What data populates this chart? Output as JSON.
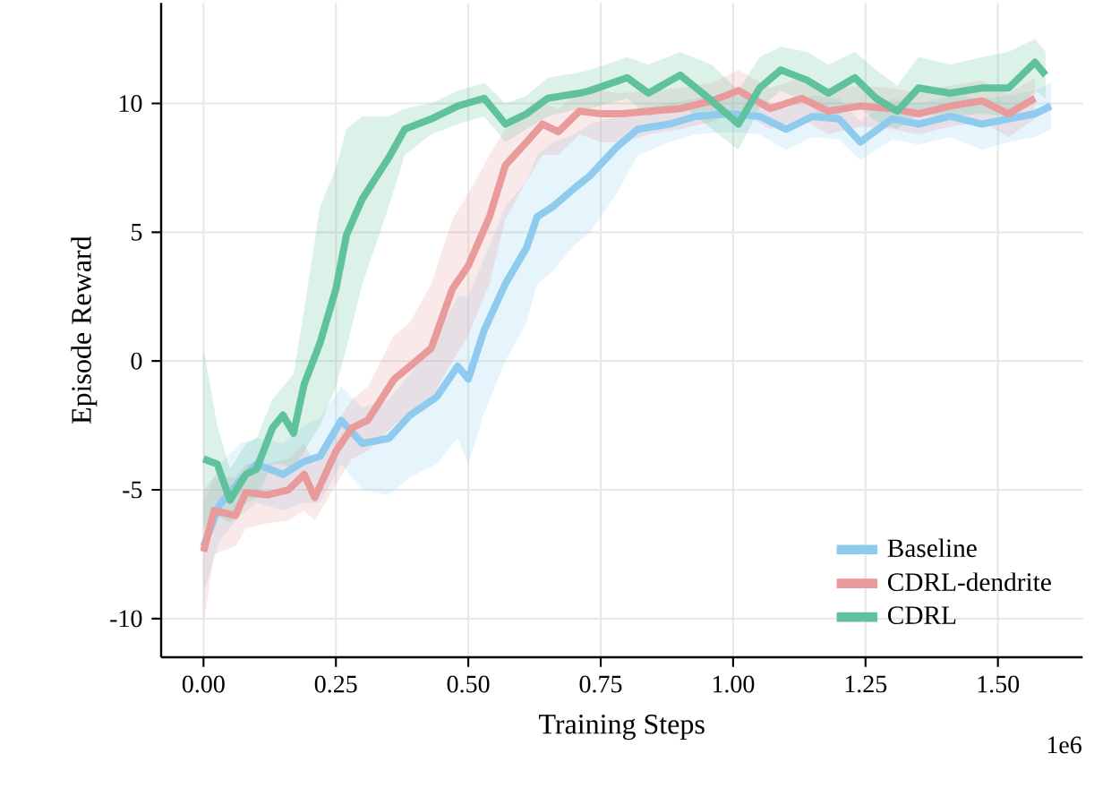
{
  "chart_data": {
    "type": "line",
    "xlabel": "Training Steps",
    "ylabel": "Episode Reward",
    "annotations": [
      "1e6"
    ],
    "xlim": [
      -0.08,
      1.66
    ],
    "ylim": [
      -11.5,
      13.9
    ],
    "xticks": [
      {
        "value": 0,
        "label": "0.00"
      },
      {
        "value": 0.25,
        "label": "0.25"
      },
      {
        "value": 0.5,
        "label": "0.50"
      },
      {
        "value": 0.75,
        "label": "0.75"
      },
      {
        "value": 1.0,
        "label": "1.00"
      },
      {
        "value": 1.25,
        "label": "1.25"
      },
      {
        "value": 1.5,
        "label": "1.50"
      }
    ],
    "yticks": [
      -10,
      -5,
      0,
      5,
      10
    ],
    "grid": true,
    "legend": "bottom right",
    "marker": "none",
    "line_style": "solid",
    "series": [
      {
        "name": "Baseline",
        "color": "#8ecbee",
        "x": [
          0,
          0.03,
          0.07,
          0.1,
          0.15,
          0.19,
          0.22,
          0.26,
          0.3,
          0.35,
          0.39,
          0.44,
          0.48,
          0.5,
          0.53,
          0.57,
          0.61,
          0.63,
          0.66,
          0.7,
          0.73,
          0.78,
          0.82,
          0.88,
          0.93,
          0.99,
          1.05,
          1.1,
          1.15,
          1.2,
          1.24,
          1.3,
          1.35,
          1.41,
          1.47,
          1.52,
          1.57,
          1.6
        ],
        "values": [
          -7.2,
          -5.6,
          -4.6,
          -4.0,
          -4.4,
          -3.9,
          -3.7,
          -2.3,
          -3.2,
          -3.0,
          -2.1,
          -1.4,
          -0.2,
          -0.7,
          1.2,
          3.0,
          4.4,
          5.6,
          6.0,
          6.7,
          7.2,
          8.3,
          9.0,
          9.2,
          9.5,
          9.6,
          9.5,
          9.0,
          9.5,
          9.4,
          8.5,
          9.4,
          9.2,
          9.5,
          9.2,
          9.4,
          9.6,
          9.9
        ],
        "lower": [
          -9,
          -7,
          -6,
          -5.5,
          -5.8,
          -5.5,
          -5.5,
          -4,
          -5,
          -5.2,
          -4.5,
          -4,
          -3,
          -4,
          -2,
          0,
          1.5,
          3,
          3.5,
          4.5,
          5,
          6.5,
          8,
          8.5,
          8.8,
          8.9,
          8.8,
          8.2,
          8.7,
          8.6,
          7.8,
          8.6,
          8.4,
          8.7,
          8.2,
          8.5,
          8.7,
          9
        ],
        "upper": [
          -5.5,
          -4,
          -3.2,
          -3,
          -3.2,
          -2.5,
          -2.2,
          -1,
          -1.8,
          -1.5,
          -0.5,
          1,
          2.5,
          2.5,
          4,
          6,
          7,
          8,
          8.5,
          8.8,
          9.2,
          9.5,
          9.8,
          10,
          10.2,
          10.3,
          10.2,
          9.8,
          10.3,
          10.2,
          9.3,
          10.2,
          10,
          10.3,
          10.2,
          10.3,
          10.5,
          10.8
        ]
      },
      {
        "name": "CDRL-dendrite",
        "color": "#e99a9a",
        "x": [
          0,
          0.02,
          0.06,
          0.08,
          0.12,
          0.16,
          0.19,
          0.21,
          0.25,
          0.28,
          0.31,
          0.36,
          0.39,
          0.43,
          0.47,
          0.5,
          0.54,
          0.57,
          0.61,
          0.64,
          0.67,
          0.71,
          0.75,
          0.79,
          0.84,
          0.9,
          0.96,
          1.01,
          1.07,
          1.13,
          1.18,
          1.24,
          1.3,
          1.35,
          1.41,
          1.47,
          1.52,
          1.57
        ],
        "values": [
          -7.4,
          -5.8,
          -6.0,
          -5.1,
          -5.2,
          -5.0,
          -4.4,
          -5.3,
          -3.5,
          -2.6,
          -2.3,
          -0.7,
          -0.2,
          0.5,
          2.8,
          3.7,
          5.6,
          7.6,
          8.5,
          9.2,
          8.9,
          9.7,
          9.6,
          9.6,
          9.7,
          9.8,
          10.1,
          10.5,
          9.8,
          10.2,
          9.7,
          9.9,
          9.8,
          9.6,
          9.9,
          10.1,
          9.6,
          10.2
        ],
        "lower": [
          -10.2,
          -7.5,
          -7.2,
          -6.5,
          -6.3,
          -6.2,
          -5.8,
          -6.2,
          -4.8,
          -3.8,
          -3.5,
          -2.5,
          -2,
          -1.5,
          0,
          1,
          3,
          5.5,
          7,
          8,
          8,
          8.8,
          8.5,
          8.5,
          8.8,
          9,
          9.3,
          9.7,
          9,
          9.4,
          8.8,
          9.1,
          9,
          8.8,
          9.1,
          9.3,
          8.7,
          9.4
        ],
        "upper": [
          -5,
          -4.5,
          -4.5,
          -4,
          -4,
          -3.8,
          -3.2,
          -4,
          -2.5,
          -1.5,
          -1,
          1,
          1.5,
          3,
          5.5,
          6.5,
          8,
          9,
          9.5,
          10,
          9.8,
          10.5,
          10.5,
          10.4,
          10.5,
          10.6,
          10.8,
          11.3,
          10.6,
          11,
          10.5,
          10.7,
          10.6,
          10.4,
          10.7,
          10.9,
          10.4,
          11
        ]
      },
      {
        "name": "CDRL",
        "color": "#5fc29c",
        "x": [
          0,
          0.026,
          0.05,
          0.08,
          0.1,
          0.13,
          0.15,
          0.17,
          0.19,
          0.22,
          0.25,
          0.27,
          0.3,
          0.35,
          0.38,
          0.43,
          0.48,
          0.53,
          0.57,
          0.61,
          0.65,
          0.71,
          0.73,
          0.8,
          0.84,
          0.9,
          0.96,
          1.01,
          1.05,
          1.09,
          1.14,
          1.18,
          1.23,
          1.27,
          1.31,
          1.35,
          1.41,
          1.47,
          1.52,
          1.57,
          1.59
        ],
        "values": [
          -3.8,
          -4.0,
          -5.4,
          -4.4,
          -4.2,
          -2.6,
          -2.1,
          -2.8,
          -0.9,
          0.7,
          2.8,
          4.9,
          6.3,
          7.9,
          9.0,
          9.4,
          9.9,
          10.2,
          9.2,
          9.6,
          10.2,
          10.4,
          10.5,
          11.0,
          10.4,
          11.1,
          10.1,
          9.2,
          10.6,
          11.3,
          10.9,
          10.4,
          11.0,
          10.2,
          9.7,
          10.6,
          10.4,
          10.6,
          10.6,
          11.6,
          11.1
        ],
        "lower": [
          -6.5,
          -6,
          -6.3,
          -5.5,
          -5.3,
          -4,
          -4,
          -4.2,
          -3.5,
          -2.5,
          -1,
          0.5,
          3,
          6,
          8,
          8.8,
          9.2,
          9.5,
          8.5,
          9,
          9.5,
          9.8,
          9.8,
          10.2,
          9.5,
          10,
          9,
          8.2,
          9.8,
          10.5,
          10,
          9.3,
          10,
          9.3,
          9,
          9.6,
          9.5,
          9.6,
          9.5,
          10.5,
          10.2
        ],
        "upper": [
          0.5,
          -2.5,
          -4.2,
          -3.2,
          -3,
          -1.5,
          -1,
          -0.5,
          2,
          6,
          7.5,
          9,
          9.5,
          9.5,
          9.8,
          10,
          10.5,
          10.8,
          10,
          10.3,
          11,
          11.2,
          11.3,
          11.8,
          11.5,
          12,
          11.5,
          10.5,
          11.8,
          12.2,
          12,
          11.5,
          12,
          11.3,
          10.7,
          11.8,
          11.5,
          11.8,
          12,
          12.5,
          12
        ]
      }
    ]
  }
}
